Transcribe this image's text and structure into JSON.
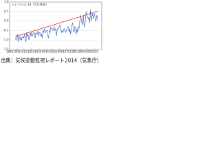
{
  "chart_data": {
    "type": "line",
    "annotation": "トレンド=1.14（℃/100年）",
    "caption": "出典：気候変動監視レポート2014（気象庁）",
    "x": [
      1898,
      1899,
      1900,
      1901,
      1902,
      1903,
      1904,
      1905,
      1906,
      1907,
      1908,
      1909,
      1910,
      1911,
      1912,
      1913,
      1914,
      1915,
      1916,
      1917,
      1918,
      1919,
      1920,
      1921,
      1922,
      1923,
      1924,
      1925,
      1926,
      1927,
      1928,
      1929,
      1930,
      1931,
      1932,
      1933,
      1934,
      1935,
      1936,
      1937,
      1938,
      1939,
      1940,
      1941,
      1942,
      1943,
      1944,
      1945,
      1946,
      1947,
      1948,
      1949,
      1950,
      1951,
      1952,
      1953,
      1954,
      1955,
      1956,
      1957,
      1958,
      1959,
      1960,
      1961,
      1962,
      1963,
      1964,
      1965,
      1966,
      1967,
      1968,
      1969,
      1970,
      1971,
      1972,
      1973,
      1974,
      1975,
      1976,
      1977,
      1978,
      1979,
      1980,
      1981,
      1982,
      1983,
      1984,
      1985,
      1986,
      1987,
      1988,
      1989,
      1990,
      1991,
      1992,
      1993,
      1994,
      1995,
      1996,
      1997,
      1998,
      1999,
      2000,
      2001,
      2002,
      2003,
      2004,
      2005,
      2006,
      2007,
      2008,
      2009,
      2010,
      2011,
      2012,
      2013,
      2014
    ],
    "series": [
      {
        "color": "#2f5fb3",
        "values": [
          -0.9,
          -1.0,
          -0.8,
          -0.7,
          -1.1,
          -0.8,
          -0.9,
          -1.0,
          -0.8,
          -1.0,
          -0.9,
          -0.8,
          -0.9,
          -0.7,
          -0.9,
          -1.1,
          -0.6,
          -0.8,
          -0.7,
          -1.0,
          -0.9,
          -0.6,
          -0.8,
          -0.6,
          -0.8,
          -0.7,
          -0.6,
          -0.7,
          -0.9,
          -0.6,
          -0.7,
          -0.7,
          -0.5,
          -0.8,
          -0.6,
          -0.6,
          -0.8,
          -0.7,
          -0.9,
          -0.5,
          -0.6,
          -0.4,
          -0.6,
          -0.6,
          -0.5,
          -0.5,
          -0.8,
          -0.9,
          -0.5,
          -0.6,
          -0.3,
          -0.4,
          -0.4,
          -0.5,
          -0.4,
          -0.3,
          -0.5,
          -0.4,
          -0.8,
          -0.5,
          -0.4,
          -0.4,
          -0.3,
          -0.2,
          -0.4,
          -0.6,
          -0.5,
          -0.6,
          -0.5,
          -0.4,
          -0.5,
          -0.6,
          -0.5,
          -0.5,
          -0.3,
          -0.3,
          -0.6,
          -0.4,
          -0.7,
          -0.4,
          -0.2,
          -0.1,
          -0.5,
          -0.6,
          -0.3,
          -0.3,
          -0.7,
          -0.4,
          -0.6,
          -0.3,
          -0.4,
          0.0,
          0.3,
          0.1,
          -0.1,
          -0.2,
          0.3,
          -0.2,
          -0.3,
          0.1,
          0.5,
          0.3,
          0.2,
          0.1,
          0.2,
          -0.1,
          0.6,
          0.0,
          0.2,
          0.4,
          0.1,
          0.3,
          0.4,
          0.0,
          0.0,
          0.3,
          0.1
        ]
      },
      {
        "color": "#e02020",
        "x": [
          1898,
          2014
        ],
        "values": [
          -0.82,
          0.51
        ]
      }
    ],
    "xlim": [
      1890,
      2020
    ],
    "xticks": [
      1890,
      1900,
      1910,
      1920,
      1930,
      1940,
      1950,
      1960,
      1970,
      1980,
      1990,
      2000,
      2010
    ],
    "ylim": [
      -1.5,
      1.0
    ],
    "yticks": [
      {
        "value": -1.5,
        "label": "-1.5"
      },
      {
        "value": -1,
        "label": "-1.0"
      },
      {
        "value": -0.5,
        "label": "-0.5"
      },
      {
        "value": 0,
        "label": "0.0"
      },
      {
        "value": 0.5,
        "label": "0.5"
      },
      {
        "value": 1,
        "label": "1.0"
      }
    ],
    "grid": true
  }
}
